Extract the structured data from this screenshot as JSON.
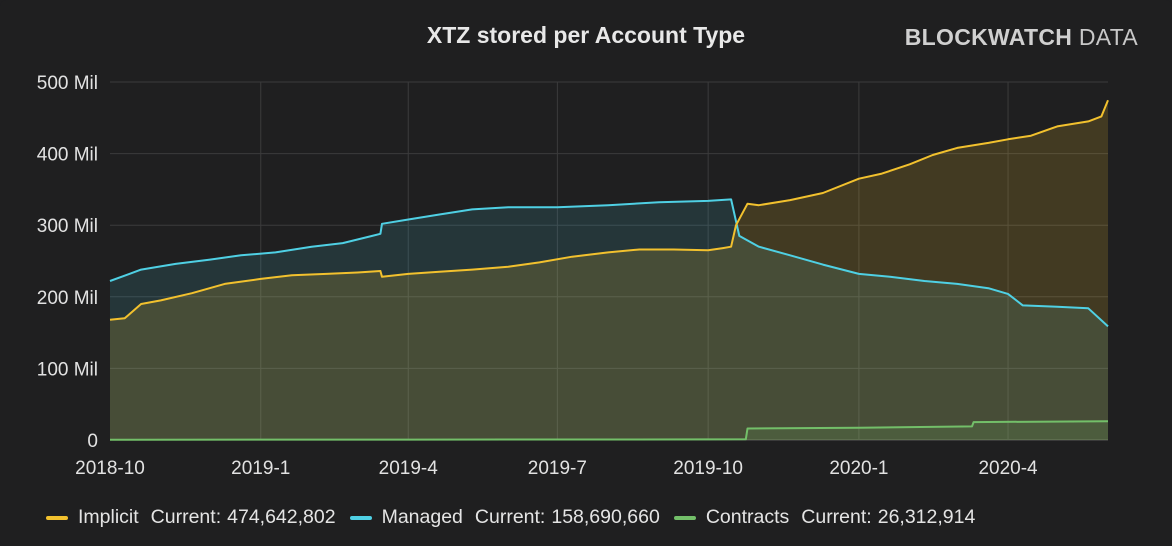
{
  "panel": {
    "title": "XTZ stored per Account Type",
    "brand_bold": "BLOCKWATCH",
    "brand_light": "DATA"
  },
  "legend": {
    "current_label": "Current:",
    "items": [
      {
        "name": "Implicit",
        "current": "474,642,802",
        "color": "#f2c12e"
      },
      {
        "name": "Managed",
        "current": "158,690,660",
        "color": "#4fd0e4"
      },
      {
        "name": "Contracts",
        "current": "26,312,914",
        "color": "#73bf69"
      }
    ]
  },
  "chart_data": {
    "type": "area",
    "title": "XTZ stored per Account Type",
    "xlabel": "",
    "ylabel": "",
    "x_ticks": [
      "2018-10",
      "2019-1",
      "2019-4",
      "2019-7",
      "2019-10",
      "2020-1",
      "2020-4"
    ],
    "x_tick_dates": [
      "2018-10-01",
      "2019-01-01",
      "2019-04-01",
      "2019-07-01",
      "2019-10-01",
      "2020-01-01",
      "2020-04-01"
    ],
    "x_range": [
      "2018-10-01",
      "2020-06-01"
    ],
    "y_ticks": [
      "0",
      "100 Mil",
      "200 Mil",
      "300 Mil",
      "400 Mil",
      "500 Mil"
    ],
    "y_tick_values": [
      0,
      100,
      200,
      300,
      400,
      500
    ],
    "y_unit": "million XTZ",
    "ylim": [
      0,
      500
    ],
    "grid": true,
    "legend_position": "bottom",
    "series": [
      {
        "name": "Implicit",
        "color": "#f2c12e",
        "x": [
          "2018-10-01",
          "2018-10-10",
          "2018-10-20",
          "2018-11-01",
          "2018-11-20",
          "2018-12-10",
          "2019-01-01",
          "2019-01-20",
          "2019-02-10",
          "2019-03-01",
          "2019-03-15",
          "2019-03-16",
          "2019-04-01",
          "2019-04-20",
          "2019-05-10",
          "2019-06-01",
          "2019-06-20",
          "2019-07-10",
          "2019-08-01",
          "2019-08-20",
          "2019-09-10",
          "2019-10-01",
          "2019-10-10",
          "2019-10-15",
          "2019-10-18",
          "2019-10-25",
          "2019-11-01",
          "2019-11-20",
          "2019-12-10",
          "2020-01-01",
          "2020-01-15",
          "2020-02-01",
          "2020-02-15",
          "2020-03-01",
          "2020-03-20",
          "2020-04-01",
          "2020-04-15",
          "2020-05-01",
          "2020-05-20",
          "2020-05-28",
          "2020-06-01"
        ],
        "y": [
          168,
          170,
          190,
          195,
          205,
          218,
          225,
          230,
          232,
          234,
          236,
          228,
          232,
          235,
          238,
          242,
          248,
          256,
          262,
          266,
          266,
          265,
          268,
          270,
          300,
          330,
          328,
          335,
          345,
          365,
          372,
          385,
          398,
          408,
          415,
          420,
          425,
          438,
          445,
          452,
          474.6
        ]
      },
      {
        "name": "Managed",
        "color": "#4fd0e4",
        "x": [
          "2018-10-01",
          "2018-10-20",
          "2018-11-10",
          "2018-12-01",
          "2018-12-20",
          "2019-01-10",
          "2019-02-01",
          "2019-02-20",
          "2019-03-10",
          "2019-03-15",
          "2019-03-16",
          "2019-04-01",
          "2019-04-20",
          "2019-05-10",
          "2019-06-01",
          "2019-07-01",
          "2019-08-01",
          "2019-09-01",
          "2019-10-01",
          "2019-10-15",
          "2019-10-20",
          "2019-11-01",
          "2019-11-20",
          "2019-12-10",
          "2020-01-01",
          "2020-01-20",
          "2020-02-10",
          "2020-03-01",
          "2020-03-20",
          "2020-04-01",
          "2020-04-10",
          "2020-05-01",
          "2020-05-20",
          "2020-06-01"
        ],
        "y": [
          222,
          238,
          246,
          252,
          258,
          262,
          270,
          275,
          285,
          288,
          302,
          308,
          315,
          322,
          325,
          325,
          328,
          332,
          334,
          336,
          285,
          270,
          258,
          245,
          232,
          228,
          222,
          218,
          212,
          204,
          188,
          186,
          184,
          158.7
        ]
      },
      {
        "name": "Contracts",
        "color": "#73bf69",
        "x": [
          "2018-10-01",
          "2019-01-01",
          "2019-04-01",
          "2019-07-01",
          "2019-10-01",
          "2019-10-24",
          "2019-10-25",
          "2020-01-01",
          "2020-03-10",
          "2020-03-11",
          "2020-06-01"
        ],
        "y": [
          0.3,
          0.5,
          0.6,
          0.7,
          0.9,
          1.0,
          16,
          17,
          19,
          25,
          26.3
        ]
      }
    ]
  }
}
